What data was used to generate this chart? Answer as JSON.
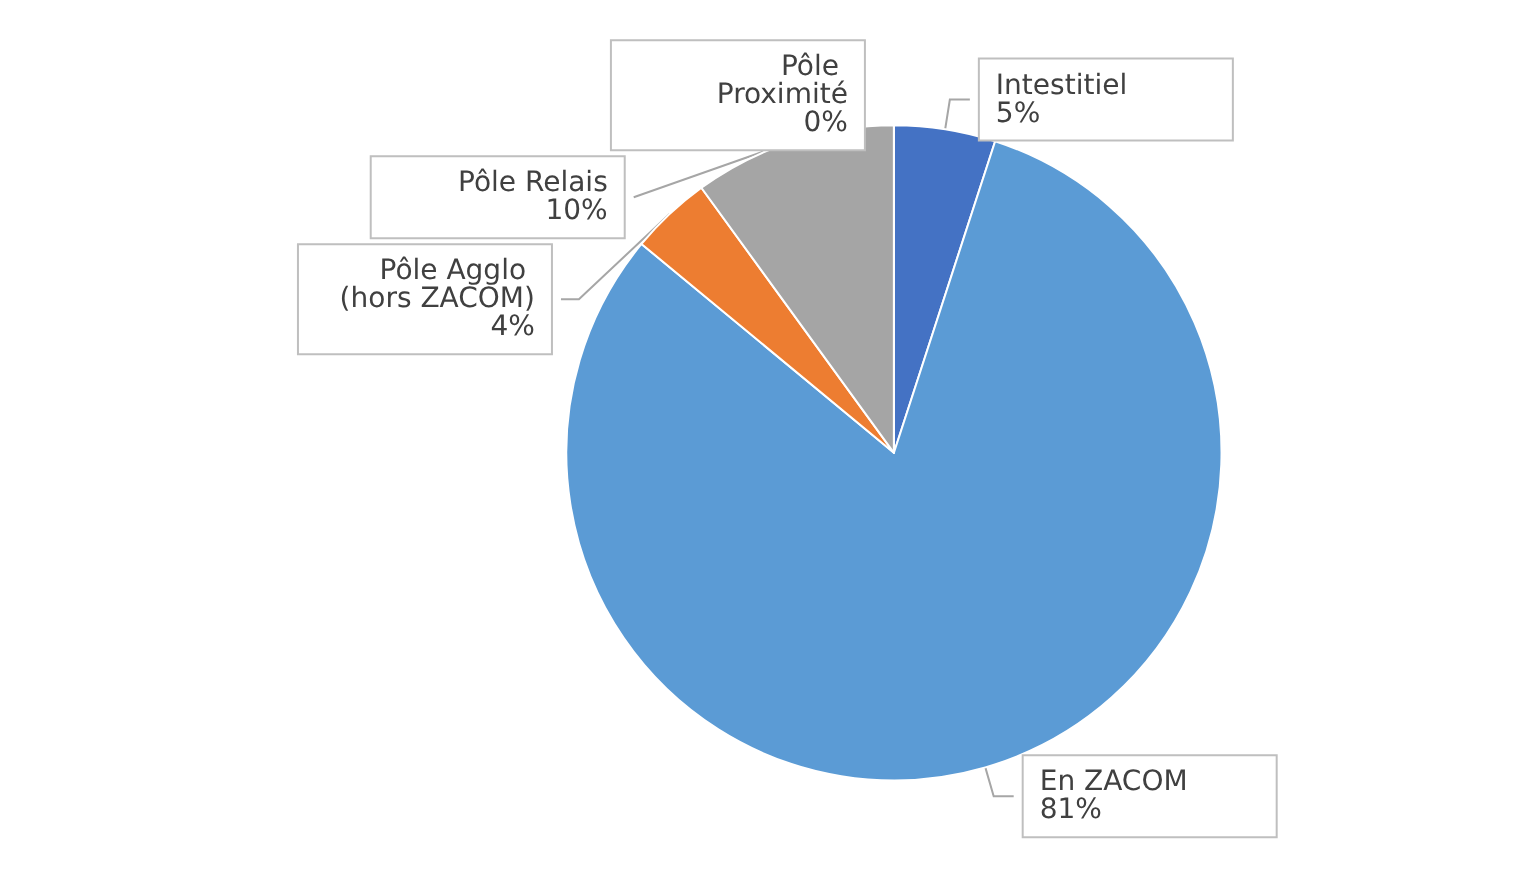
{
  "chart_data": {
    "type": "pie",
    "categories": [
      "Intestitiel",
      "En ZACOM",
      "Pôle Agglo (hors ZACOM)",
      "Pôle Relais",
      "Pôle Proximité"
    ],
    "values": [
      5,
      81,
      4,
      10,
      0
    ],
    "colors": [
      "#4472c4",
      "#5b9bd5",
      "#ed7d31",
      "#a5a5a5",
      "#ffc000"
    ],
    "value_labels": [
      "5%",
      "81%",
      "4%",
      "10%",
      "0%"
    ],
    "legend": false
  }
}
